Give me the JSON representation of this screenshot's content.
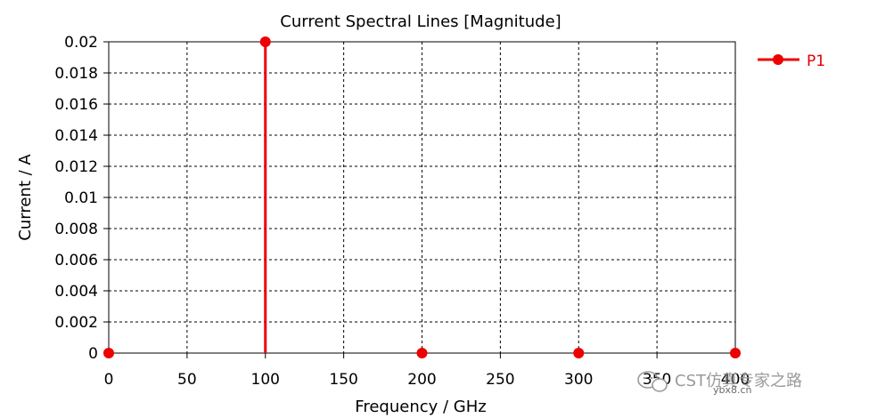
{
  "chart_data": {
    "type": "line",
    "title": "Current Spectral Lines [Magnitude]",
    "xlabel": "Frequency / GHz",
    "ylabel": "Current / A",
    "xlim": [
      0,
      400
    ],
    "ylim": [
      0,
      0.02
    ],
    "x_ticks": [
      "0",
      "50",
      "100",
      "150",
      "200",
      "250",
      "300",
      "350",
      "400"
    ],
    "y_ticks": [
      "0",
      "0.002",
      "0.004",
      "0.006",
      "0.008",
      "0.01",
      "0.012",
      "0.014",
      "0.016",
      "0.018",
      "0.02"
    ],
    "grid": true,
    "legend_position": "top-right",
    "series": [
      {
        "name": "P1",
        "color": "#ee0000",
        "style": "stem",
        "x": [
          0,
          100,
          200,
          300,
          400
        ],
        "y": [
          0,
          0.02,
          0,
          0,
          0
        ]
      }
    ]
  },
  "watermark": {
    "text": "CST仿真专家之路",
    "sub": "ybx8.cn",
    "icon": "wechat-icon"
  }
}
